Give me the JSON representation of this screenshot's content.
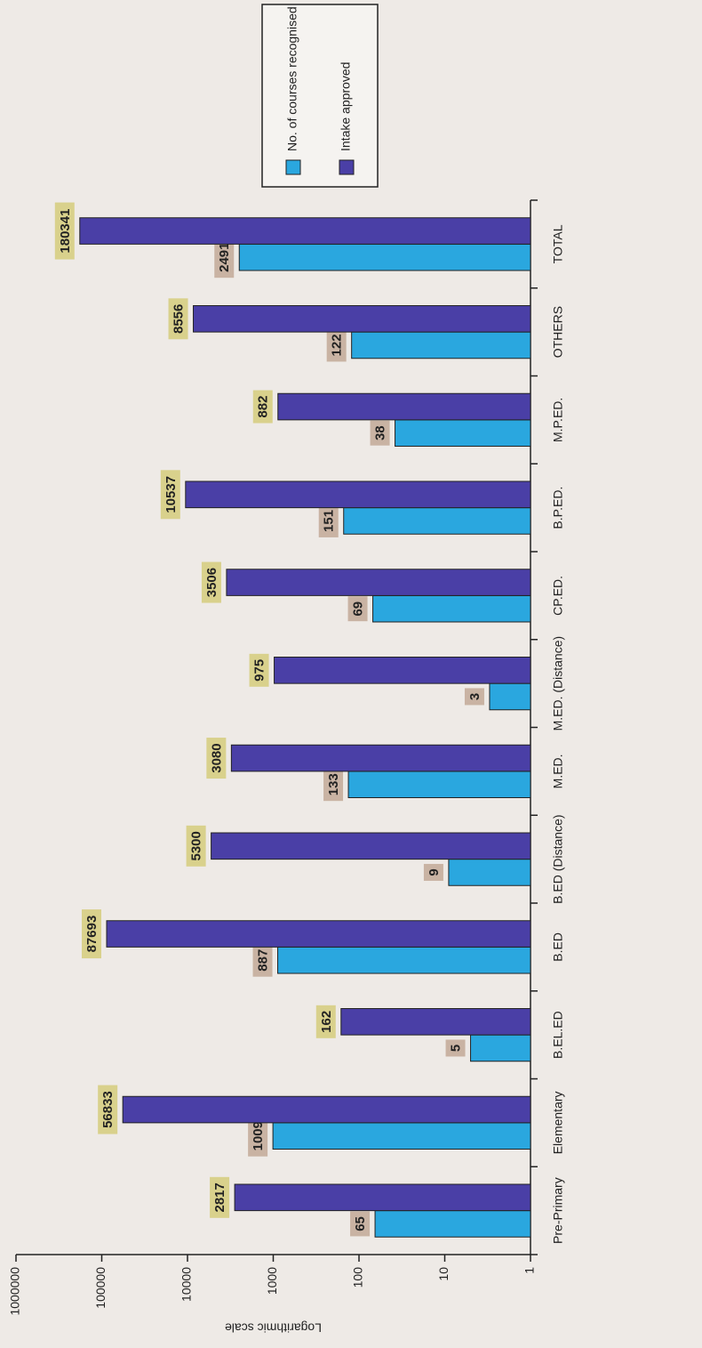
{
  "chart_data": {
    "type": "bar",
    "log_scale": true,
    "y_label": "Logarithmic scale",
    "categories": [
      "Pre-Primary",
      "Elementary",
      "B.EL.ED",
      "B.ED",
      "B.ED (Distance)",
      "M.ED.",
      "M.ED. (Distance)",
      "CP.ED.",
      "B.P.ED.",
      "M.P.ED.",
      "OTHERS",
      "TOTAL"
    ],
    "series": [
      {
        "name": "No. of courses recognised",
        "color": "#2aa7df",
        "label_color": "#c9b3a3",
        "values": [
          65,
          1009,
          5,
          887,
          9,
          133,
          3,
          69,
          151,
          38,
          122,
          2491
        ]
      },
      {
        "name": "Intake approved",
        "color": "#4a3fa6",
        "label_color": "#d9d18c",
        "values": [
          2817,
          56833,
          162,
          87693,
          5300,
          3080,
          975,
          3506,
          10537,
          882,
          8556,
          180341
        ]
      }
    ],
    "ylim": [
      1,
      1000000
    ],
    "yticks": [
      1,
      10,
      100,
      1000,
      10000,
      100000,
      1000000
    ]
  }
}
